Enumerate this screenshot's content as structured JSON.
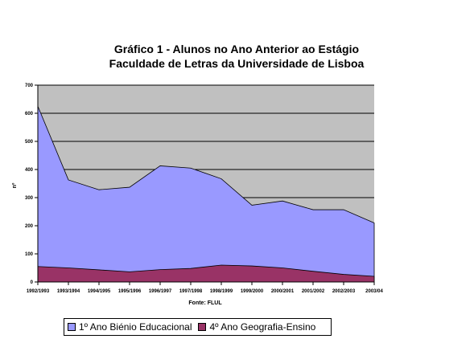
{
  "chart_data": {
    "type": "area",
    "stacked": false,
    "title": "Gráfico 1 - Alunos no Ano Anterior ao Estágio",
    "subtitle": "Faculdade de Letras da Universidade de Lisboa",
    "xlabel": "Fonte: FLUL",
    "ylabel": "nº",
    "ylim": [
      0,
      700
    ],
    "yticks": [
      "0",
      "100",
      "200",
      "300",
      "400",
      "500",
      "600",
      "700"
    ],
    "grid": true,
    "legend_position": "bottom",
    "categories": [
      "1992/1993",
      "1993/1994",
      "1994/1995",
      "1995/1996",
      "1996/1997",
      "1997/1998",
      "1998/1999",
      "1999/2000",
      "2000/2001",
      "2001/2002",
      "2002/2003",
      "2003/04"
    ],
    "series": [
      {
        "name": "1º Ano Biénio Educacional",
        "color": "#9999ff",
        "values": [
          625,
          363,
          328,
          337,
          413,
          405,
          367,
          273,
          288,
          257,
          257,
          210
        ]
      },
      {
        "name": "4º Ano Geografia-Ensino",
        "color": "#993366",
        "values": [
          55,
          50,
          43,
          36,
          44,
          48,
          60,
          57,
          50,
          38,
          27,
          20
        ]
      }
    ],
    "plot_background": "#c0c0c0"
  }
}
